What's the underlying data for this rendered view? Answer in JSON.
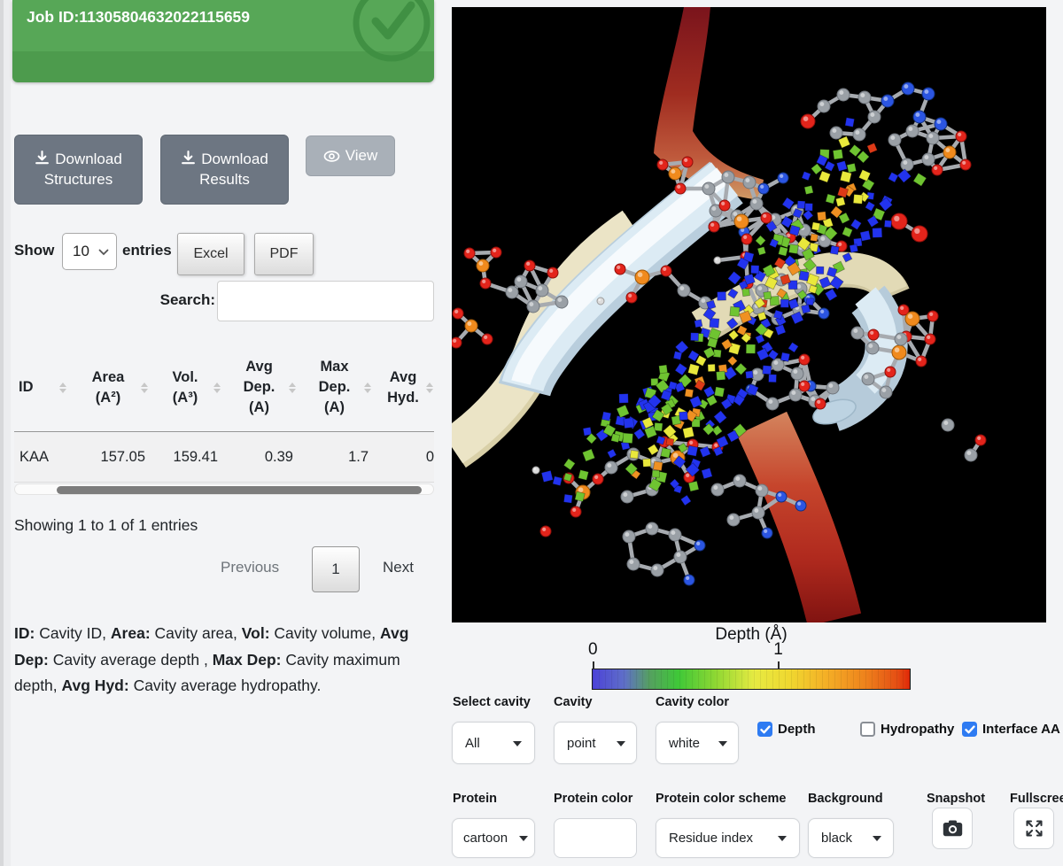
{
  "job_banner": {
    "label": "Job ID:11305804632022115659",
    "status_icon": "check-circle",
    "color_top": "#57a757",
    "color_bottom": "#4d9b4d"
  },
  "actions": {
    "download_structures": "Download Structures",
    "download_results": "Download Results",
    "view": "View"
  },
  "table_controls": {
    "show_label": "Show",
    "page_length_value": "10",
    "entries_label": "entries",
    "export_buttons": [
      "Excel",
      "PDF"
    ],
    "search_label": "Search:",
    "search_value": ""
  },
  "results_table": {
    "columns_lines": [
      [
        "ID"
      ],
      [
        "Area",
        "(A²)"
      ],
      [
        "Vol.",
        "(A³)"
      ],
      [
        "Avg",
        "Dep.",
        "(A)"
      ],
      [
        "Max",
        "Dep.",
        "(A)"
      ],
      [
        "Avg",
        "Hyd."
      ]
    ],
    "rows": [
      [
        "KAA",
        "157.05",
        "159.41",
        "0.39",
        "1.7",
        "0"
      ]
    ],
    "info": "Showing 1 to 1 of 1 entries",
    "pagination": {
      "previous": "Previous",
      "page": "1",
      "next": "Next"
    }
  },
  "legend_segments": [
    {
      "b": "ID:"
    },
    {
      "t": " Cavity ID, "
    },
    {
      "b": "Area:"
    },
    {
      "t": " Cavity area, "
    },
    {
      "b": "Vol:"
    },
    {
      "t": " Cavity volume, "
    },
    {
      "b": "Avg Dep:"
    },
    {
      "t": " Cavity average depth , "
    },
    {
      "b": "Max Dep:"
    },
    {
      "t": " Cavity maximum depth, "
    },
    {
      "b": "Avg Hyd:"
    },
    {
      "t": " Cavity average hydropathy."
    }
  ],
  "viewer": {
    "background": "#000000",
    "colorbar": {
      "title": "Depth (Å)",
      "ticks": [
        {
          "label": "0",
          "pos": 0.0
        },
        {
          "label": "1",
          "pos": 0.586
        }
      ],
      "gradient": [
        "#4c42d8 0%",
        "#5f6fc8 10%",
        "#55a060 18%",
        "#3fc838 27%",
        "#90d833 39%",
        "#e6ea42 51%",
        "#f0d830 62%",
        "#f4ae26 74%",
        "#ee821c 86%",
        "#e54f14 96%",
        "#e02808 100%"
      ]
    },
    "atom_colors": {
      "C": "#9aa0a6",
      "O": "#e3241b",
      "N": "#2b55e2",
      "P": "#f08a1d",
      "H": "#dcdcdc"
    },
    "cavity_palette": {
      "blue": "#2233ee",
      "green": "#6fc431",
      "yellow": "#e9e83c",
      "orange": "#ef9122",
      "red": "#dd3a17"
    }
  },
  "controls": {
    "row1": [
      {
        "label": "Select cavity",
        "value": "All"
      },
      {
        "label": "Cavity",
        "value": "point"
      },
      {
        "label": "Cavity color",
        "value": "white"
      }
    ],
    "checkboxes": [
      {
        "label": "Depth",
        "checked": true
      },
      {
        "label": "Hydropathy",
        "checked": false
      },
      {
        "label": "Interface AA",
        "checked": true
      }
    ],
    "row2": [
      {
        "label": "Protein",
        "value": "cartoon"
      },
      {
        "label": "Protein color",
        "value": ""
      },
      {
        "label": "Protein color scheme",
        "value": "Residue index"
      },
      {
        "label": "Background",
        "value": "black"
      },
      {
        "label": "Snapshot"
      },
      {
        "label": "Fullscreen"
      }
    ]
  }
}
